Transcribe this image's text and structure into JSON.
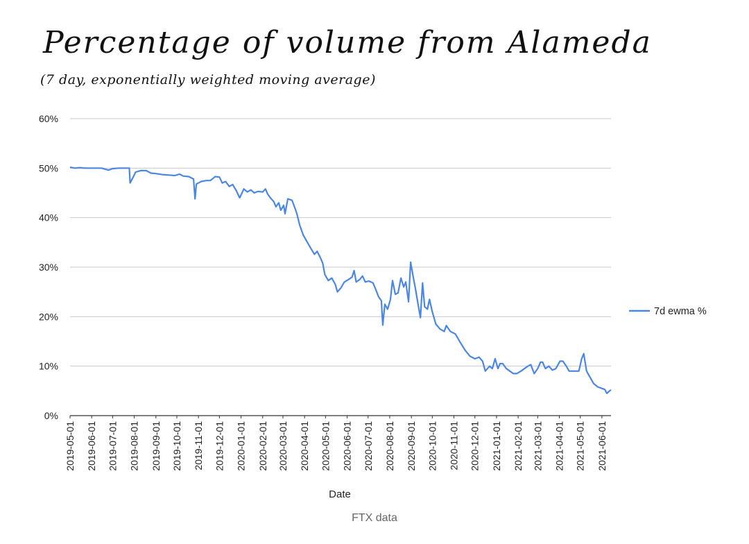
{
  "chart_data": {
    "type": "line",
    "title": "Percentage of volume from Alameda",
    "subtitle": "(7 day, exponentially weighted moving average)",
    "xlabel": "Date",
    "ylabel": "",
    "ylim": [
      0,
      60
    ],
    "y_ticks": [
      "0%",
      "10%",
      "20%",
      "30%",
      "40%",
      "50%",
      "60%"
    ],
    "x_range": [
      "2019-05-01",
      "2021-06-14"
    ],
    "x_ticks": [
      "2019-05-01",
      "2019-06-01",
      "2019-07-01",
      "2019-08-01",
      "2019-09-01",
      "2019-10-01",
      "2019-11-01",
      "2019-12-01",
      "2020-01-01",
      "2020-02-01",
      "2020-03-01",
      "2020-04-01",
      "2020-05-01",
      "2020-06-01",
      "2020-07-01",
      "2020-08-01",
      "2020-09-01",
      "2020-10-01",
      "2020-11-01",
      "2020-12-01",
      "2021-01-01",
      "2021-02-01",
      "2021-03-01",
      "2021-04-01",
      "2021-05-01",
      "2021-06-01"
    ],
    "grid": true,
    "legend_position": "right",
    "color": "#4a86e8",
    "series": [
      {
        "name": "7d ewma %",
        "points": [
          [
            "2019-05-01",
            50.2
          ],
          [
            "2019-05-08",
            50.0
          ],
          [
            "2019-05-15",
            50.1
          ],
          [
            "2019-05-22",
            50.0
          ],
          [
            "2019-06-01",
            50.0
          ],
          [
            "2019-06-15",
            50.0
          ],
          [
            "2019-06-25",
            49.6
          ],
          [
            "2019-07-01",
            49.9
          ],
          [
            "2019-07-10",
            50.0
          ],
          [
            "2019-07-20",
            50.0
          ],
          [
            "2019-07-25",
            50.0
          ],
          [
            "2019-07-26",
            47.0
          ],
          [
            "2019-07-29",
            47.8
          ],
          [
            "2019-08-03",
            49.2
          ],
          [
            "2019-08-10",
            49.5
          ],
          [
            "2019-08-18",
            49.5
          ],
          [
            "2019-08-25",
            49.0
          ],
          [
            "2019-09-01",
            48.9
          ],
          [
            "2019-09-10",
            48.7
          ],
          [
            "2019-09-20",
            48.6
          ],
          [
            "2019-09-28",
            48.5
          ],
          [
            "2019-10-05",
            48.8
          ],
          [
            "2019-10-10",
            48.4
          ],
          [
            "2019-10-18",
            48.3
          ],
          [
            "2019-10-25",
            47.8
          ],
          [
            "2019-10-27",
            43.8
          ],
          [
            "2019-10-29",
            46.8
          ],
          [
            "2019-11-05",
            47.3
          ],
          [
            "2019-11-12",
            47.5
          ],
          [
            "2019-11-18",
            47.5
          ],
          [
            "2019-11-25",
            48.3
          ],
          [
            "2019-12-01",
            48.2
          ],
          [
            "2019-12-05",
            47.0
          ],
          [
            "2019-12-10",
            47.3
          ],
          [
            "2019-12-15",
            46.3
          ],
          [
            "2019-12-20",
            46.7
          ],
          [
            "2019-12-25",
            45.5
          ],
          [
            "2019-12-30",
            44.0
          ],
          [
            "2020-01-05",
            45.8
          ],
          [
            "2020-01-10",
            45.2
          ],
          [
            "2020-01-15",
            45.6
          ],
          [
            "2020-01-20",
            45.0
          ],
          [
            "2020-01-25",
            45.3
          ],
          [
            "2020-02-01",
            45.2
          ],
          [
            "2020-02-05",
            45.8
          ],
          [
            "2020-02-08",
            44.8
          ],
          [
            "2020-02-12",
            44.0
          ],
          [
            "2020-02-17",
            43.2
          ],
          [
            "2020-02-20",
            42.2
          ],
          [
            "2020-02-24",
            43.0
          ],
          [
            "2020-02-27",
            41.5
          ],
          [
            "2020-03-02",
            42.5
          ],
          [
            "2020-03-04",
            40.8
          ],
          [
            "2020-03-08",
            43.8
          ],
          [
            "2020-03-14",
            43.5
          ],
          [
            "2020-03-18",
            42.0
          ],
          [
            "2020-03-21",
            40.8
          ],
          [
            "2020-03-25",
            38.5
          ],
          [
            "2020-03-30",
            36.5
          ],
          [
            "2020-04-05",
            35.0
          ],
          [
            "2020-04-10",
            33.8
          ],
          [
            "2020-04-15",
            32.6
          ],
          [
            "2020-04-19",
            33.2
          ],
          [
            "2020-04-24",
            31.8
          ],
          [
            "2020-04-27",
            30.8
          ],
          [
            "2020-04-30",
            28.5
          ],
          [
            "2020-05-05",
            27.3
          ],
          [
            "2020-05-10",
            27.8
          ],
          [
            "2020-05-15",
            26.5
          ],
          [
            "2020-05-18",
            25.0
          ],
          [
            "2020-05-23",
            25.8
          ],
          [
            "2020-05-28",
            27.0
          ],
          [
            "2020-06-03",
            27.5
          ],
          [
            "2020-06-08",
            28.0
          ],
          [
            "2020-06-11",
            29.3
          ],
          [
            "2020-06-14",
            27.0
          ],
          [
            "2020-06-19",
            27.5
          ],
          [
            "2020-06-23",
            28.2
          ],
          [
            "2020-06-27",
            27.0
          ],
          [
            "2020-07-02",
            27.2
          ],
          [
            "2020-07-08",
            26.8
          ],
          [
            "2020-07-12",
            25.5
          ],
          [
            "2020-07-16",
            24.0
          ],
          [
            "2020-07-20",
            23.2
          ],
          [
            "2020-07-22",
            18.3
          ],
          [
            "2020-07-25",
            22.5
          ],
          [
            "2020-07-29",
            21.5
          ],
          [
            "2020-08-02",
            23.5
          ],
          [
            "2020-08-05",
            27.3
          ],
          [
            "2020-08-09",
            24.5
          ],
          [
            "2020-08-13",
            24.8
          ],
          [
            "2020-08-17",
            27.8
          ],
          [
            "2020-08-21",
            26.0
          ],
          [
            "2020-08-24",
            27.0
          ],
          [
            "2020-08-28",
            23.0
          ],
          [
            "2020-08-31",
            31.0
          ],
          [
            "2020-09-03",
            28.5
          ],
          [
            "2020-09-07",
            25.5
          ],
          [
            "2020-09-10",
            23.0
          ],
          [
            "2020-09-14",
            19.8
          ],
          [
            "2020-09-17",
            26.8
          ],
          [
            "2020-09-20",
            22.0
          ],
          [
            "2020-09-24",
            21.5
          ],
          [
            "2020-09-27",
            23.5
          ],
          [
            "2020-10-01",
            21.0
          ],
          [
            "2020-10-06",
            18.5
          ],
          [
            "2020-10-12",
            17.5
          ],
          [
            "2020-10-18",
            17.0
          ],
          [
            "2020-10-21",
            18.2
          ],
          [
            "2020-10-27",
            17.0
          ],
          [
            "2020-11-03",
            16.5
          ],
          [
            "2020-11-10",
            14.8
          ],
          [
            "2020-11-17",
            13.2
          ],
          [
            "2020-11-24",
            12.0
          ],
          [
            "2020-12-01",
            11.5
          ],
          [
            "2020-12-07",
            11.8
          ],
          [
            "2020-12-12",
            11.0
          ],
          [
            "2020-12-16",
            9.0
          ],
          [
            "2020-12-22",
            10.0
          ],
          [
            "2020-12-26",
            9.5
          ],
          [
            "2020-12-30",
            11.5
          ],
          [
            "2021-01-03",
            9.5
          ],
          [
            "2021-01-06",
            10.5
          ],
          [
            "2021-01-10",
            10.5
          ],
          [
            "2021-01-15",
            9.5
          ],
          [
            "2021-01-20",
            9.0
          ],
          [
            "2021-01-25",
            8.5
          ],
          [
            "2021-01-30",
            8.5
          ],
          [
            "2021-02-05",
            9.0
          ],
          [
            "2021-02-10",
            9.5
          ],
          [
            "2021-02-15",
            10.0
          ],
          [
            "2021-02-19",
            10.3
          ],
          [
            "2021-02-24",
            8.5
          ],
          [
            "2021-03-01",
            9.5
          ],
          [
            "2021-03-05",
            10.8
          ],
          [
            "2021-03-08",
            10.8
          ],
          [
            "2021-03-12",
            9.5
          ],
          [
            "2021-03-17",
            10.0
          ],
          [
            "2021-03-22",
            9.2
          ],
          [
            "2021-03-27",
            9.5
          ],
          [
            "2021-04-02",
            11.0
          ],
          [
            "2021-04-06",
            11.0
          ],
          [
            "2021-04-11",
            10.0
          ],
          [
            "2021-04-15",
            9.0
          ],
          [
            "2021-04-20",
            9.0
          ],
          [
            "2021-04-25",
            9.0
          ],
          [
            "2021-04-29",
            9.0
          ],
          [
            "2021-05-03",
            11.5
          ],
          [
            "2021-05-06",
            12.5
          ],
          [
            "2021-05-10",
            9.0
          ],
          [
            "2021-05-14",
            8.0
          ],
          [
            "2021-05-20",
            6.5
          ],
          [
            "2021-05-26",
            5.8
          ],
          [
            "2021-06-01",
            5.5
          ],
          [
            "2021-06-05",
            5.3
          ],
          [
            "2021-06-08",
            4.5
          ],
          [
            "2021-06-12",
            5.0
          ],
          [
            "2021-06-14",
            5.2
          ]
        ]
      }
    ]
  },
  "caption": "FTX data"
}
